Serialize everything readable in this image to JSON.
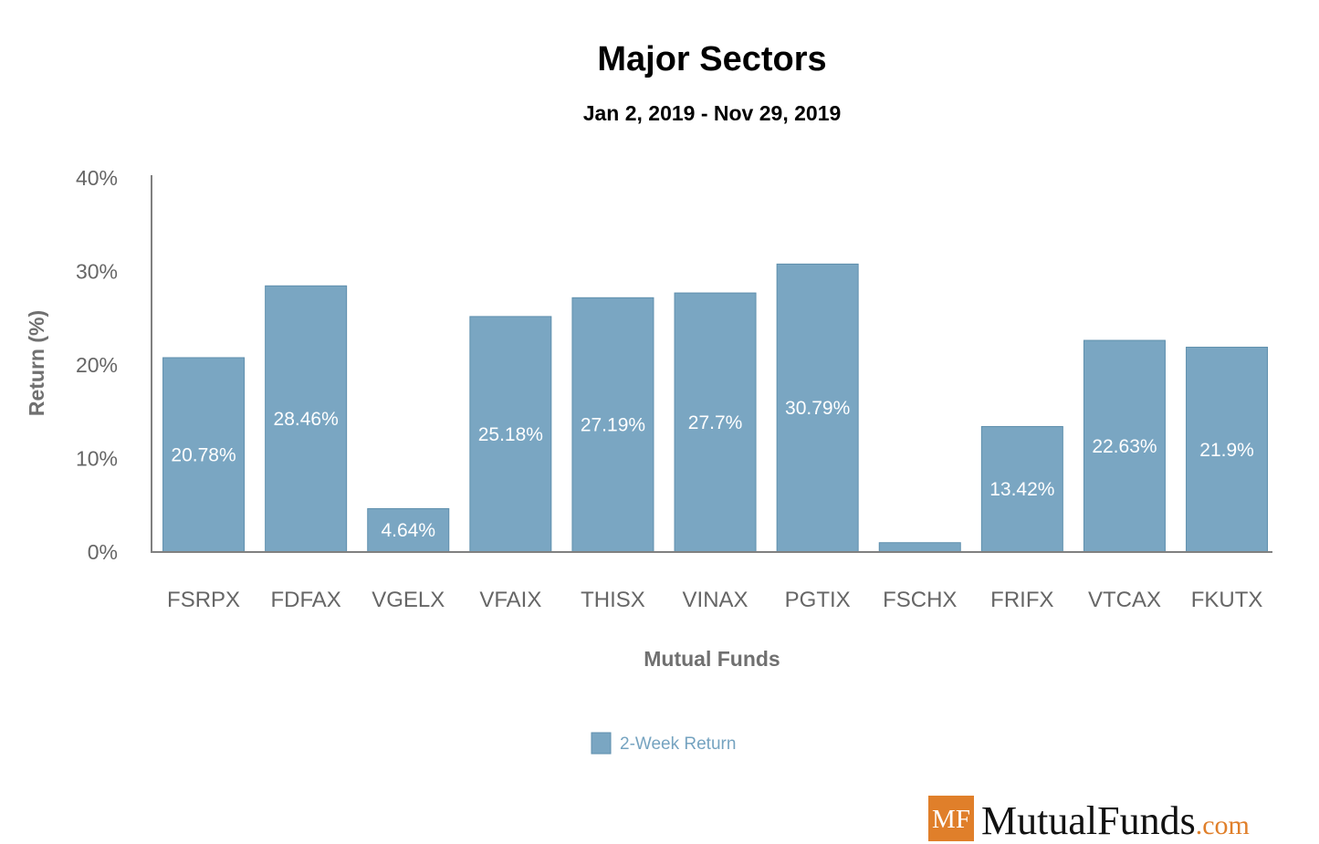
{
  "chart_data": {
    "type": "bar",
    "title": "Major Sectors",
    "subtitle": "Jan 2, 2019 - Nov 29, 2019",
    "xlabel": "Mutual Funds",
    "ylabel": "Return (%)",
    "ylim": [
      0,
      40
    ],
    "yticks": [
      "0%",
      "10%",
      "20%",
      "30%",
      "40%"
    ],
    "ytick_values": [
      0,
      10,
      20,
      30,
      40
    ],
    "categories": [
      "FSRPX",
      "FDFAX",
      "VGELX",
      "VFAIX",
      "THISX",
      "VINAX",
      "PGTIX",
      "FSCHX",
      "FRIFX",
      "VTCAX",
      "FKUTX"
    ],
    "series": [
      {
        "name": "2-Week Return",
        "color": "#7aa6c2",
        "values": [
          20.78,
          28.46,
          4.64,
          25.18,
          27.19,
          27.7,
          30.79,
          1.0,
          13.42,
          22.63,
          21.9
        ],
        "labels": [
          "20.78%",
          "28.46%",
          "4.64%",
          "25.18%",
          "27.19%",
          "27.7%",
          "30.79%",
          "",
          "13.42%",
          "22.63%",
          "21.9%"
        ]
      }
    ],
    "grid": false,
    "legend_position": "bottom-center"
  },
  "logo": {
    "badge": "MF",
    "name": "MutualFunds",
    "suffix": ".com",
    "badge_color": "#e07f2a",
    "suffix_color": "#e07f2a"
  }
}
